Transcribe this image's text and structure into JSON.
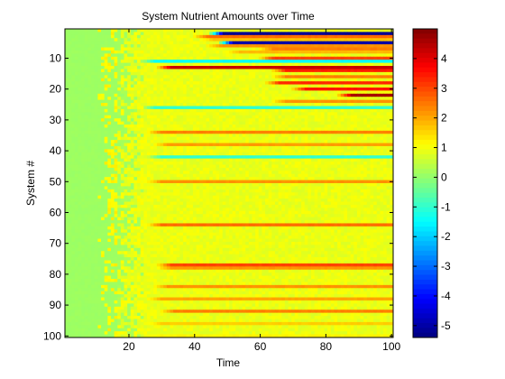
{
  "chart_data": {
    "type": "heatmap",
    "title": "System Nutrient Amounts over Time",
    "xlabel": "Time",
    "ylabel": "System #",
    "xlim": [
      1,
      100
    ],
    "ylim": [
      1,
      100
    ],
    "y_reversed": true,
    "x_ticks": [
      "20",
      "40",
      "60",
      "80",
      "100"
    ],
    "y_ticks": [
      "10",
      "20",
      "30",
      "40",
      "50",
      "60",
      "70",
      "80",
      "90",
      "100"
    ],
    "colorbar": {
      "colormap": "jet",
      "clim": [
        -5.4,
        5.0
      ],
      "ticks": [
        "4",
        "3",
        "2",
        "1",
        "0",
        "-1",
        "-2",
        "-3",
        "-4",
        "-5"
      ]
    },
    "base_value": 0.9,
    "initial_value": 0.1,
    "transition_time": 20,
    "band_rows": [
      {
        "system": 2,
        "start": 45,
        "value": -5.2
      },
      {
        "system": 3,
        "start": 40,
        "value": 2.6
      },
      {
        "system": 4,
        "start": 42,
        "value": 1.7
      },
      {
        "system": 5,
        "start": 48,
        "value": -5.0
      },
      {
        "system": 6,
        "start": 44,
        "value": 2.2
      },
      {
        "system": 7,
        "start": 60,
        "value": 2.4
      },
      {
        "system": 8,
        "start": 50,
        "value": 1.8
      },
      {
        "system": 10,
        "start": 60,
        "value": 3.0
      },
      {
        "system": 11,
        "start": 24,
        "value": -1.5
      },
      {
        "system": 13,
        "start": 29,
        "value": 4.3
      },
      {
        "system": 14,
        "start": 64,
        "value": 3.4
      },
      {
        "system": 16,
        "start": 64,
        "value": 2.4
      },
      {
        "system": 18,
        "start": 62,
        "value": 3.3
      },
      {
        "system": 20,
        "start": 70,
        "value": 3.5
      },
      {
        "system": 22,
        "start": 84,
        "value": 4.6
      },
      {
        "system": 24,
        "start": 64,
        "value": 2.2
      },
      {
        "system": 26,
        "start": 24,
        "value": -1.0
      },
      {
        "system": 34,
        "start": 26,
        "value": 2.4
      },
      {
        "system": 38,
        "start": 28,
        "value": 2.1
      },
      {
        "system": 42,
        "start": 26,
        "value": -1.0
      },
      {
        "system": 50,
        "start": 26,
        "value": 2.2
      },
      {
        "system": 64,
        "start": 26,
        "value": 2.6
      },
      {
        "system": 77,
        "start": 29,
        "value": 3.0
      },
      {
        "system": 78,
        "start": 29,
        "value": 2.2
      },
      {
        "system": 84,
        "start": 28,
        "value": 2.2
      },
      {
        "system": 88,
        "start": 26,
        "value": 2.0
      },
      {
        "system": 92,
        "start": 30,
        "value": 2.4
      },
      {
        "system": 96,
        "start": 26,
        "value": 1.6
      },
      {
        "system": 100,
        "start": 26,
        "value": 1.2
      }
    ]
  }
}
